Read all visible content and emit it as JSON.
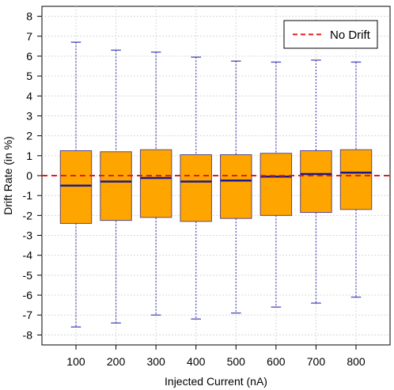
{
  "chart_data": {
    "type": "boxplot",
    "title": "",
    "xlabel": "Injected Current (nA)",
    "ylabel": "Drift Rate (in %)",
    "categories": [
      "100",
      "200",
      "300",
      "400",
      "500",
      "600",
      "700",
      "800"
    ],
    "ylim": [
      -8.5,
      8.5
    ],
    "yticks": [
      -8,
      -7,
      -6,
      -5,
      -4,
      -3,
      -2,
      -1,
      0,
      1,
      2,
      3,
      4,
      5,
      6,
      7,
      8
    ],
    "grid": true,
    "boxes": [
      {
        "category": "100",
        "min": -7.6,
        "q1": -2.4,
        "median": -0.5,
        "q3": 1.25,
        "max": 6.7
      },
      {
        "category": "200",
        "min": -7.4,
        "q1": -2.25,
        "median": -0.3,
        "q3": 1.2,
        "max": 6.3
      },
      {
        "category": "300",
        "min": -7.0,
        "q1": -2.1,
        "median": -0.12,
        "q3": 1.3,
        "max": 6.2
      },
      {
        "category": "400",
        "min": -7.2,
        "q1": -2.3,
        "median": -0.3,
        "q3": 1.05,
        "max": 5.95
      },
      {
        "category": "500",
        "min": -6.9,
        "q1": -2.15,
        "median": -0.25,
        "q3": 1.05,
        "max": 5.75
      },
      {
        "category": "600",
        "min": -6.6,
        "q1": -2.0,
        "median": -0.05,
        "q3": 1.12,
        "max": 5.7
      },
      {
        "category": "700",
        "min": -6.4,
        "q1": -1.85,
        "median": 0.08,
        "q3": 1.25,
        "max": 5.8
      },
      {
        "category": "800",
        "min": -6.1,
        "q1": -1.7,
        "median": 0.15,
        "q3": 1.3,
        "max": 5.7
      }
    ],
    "reference_line": {
      "y": 0,
      "label": "No Drift",
      "color": "#e41a1c",
      "style": "dashed"
    },
    "legend": {
      "position": "top-right",
      "entries": [
        "No Drift"
      ]
    },
    "colors": {
      "box_fill": "#ffa500",
      "box_stroke": "#5a4a8a",
      "median": "#1a1a8c",
      "whisker": "#4b4bbf",
      "grid": "#d8d8d8"
    }
  }
}
